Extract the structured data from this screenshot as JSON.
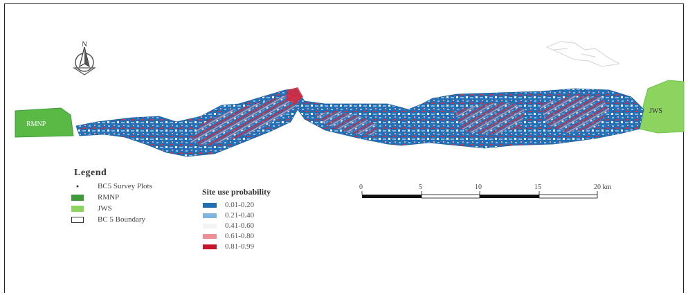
{
  "map": {
    "north_label": "N",
    "left_area_label": "RMNP",
    "right_area_label": "JWS",
    "colors": {
      "park_green": "#6cc24a",
      "park_green_dark": "#3f9b3a",
      "prob_blue": "#1f6fb2",
      "prob_light_blue": "#7fb6e0",
      "prob_white": "#f4f4f4",
      "prob_pink": "#ef8f95",
      "prob_red": "#c8142a"
    }
  },
  "legend": {
    "title": "Legend",
    "items": [
      {
        "label": "BC5 Survey Plots",
        "symbol": "dot-icon"
      },
      {
        "label": "RMNP",
        "symbol": "green-fill",
        "color": "#3f9b3a"
      },
      {
        "label": "JWS",
        "symbol": "light-green-fill",
        "color": "#8cd35f"
      },
      {
        "label": "BC 5 Boundary",
        "symbol": "outline-box"
      }
    ]
  },
  "probability_legend": {
    "title": "Site use probability",
    "classes": [
      {
        "label": "0.01-0.20",
        "color": "#1f6fb2"
      },
      {
        "label": "0.21-0.40",
        "color": "#7fb6e0"
      },
      {
        "label": "0.41-0.60",
        "color": "#f4f4f4"
      },
      {
        "label": "0.61-0.80",
        "color": "#ef8f95"
      },
      {
        "label": "0.81-0.99",
        "color": "#c8142a"
      }
    ]
  },
  "scale_bar": {
    "ticks": [
      "0",
      "5",
      "10",
      "15",
      "20 km"
    ]
  }
}
